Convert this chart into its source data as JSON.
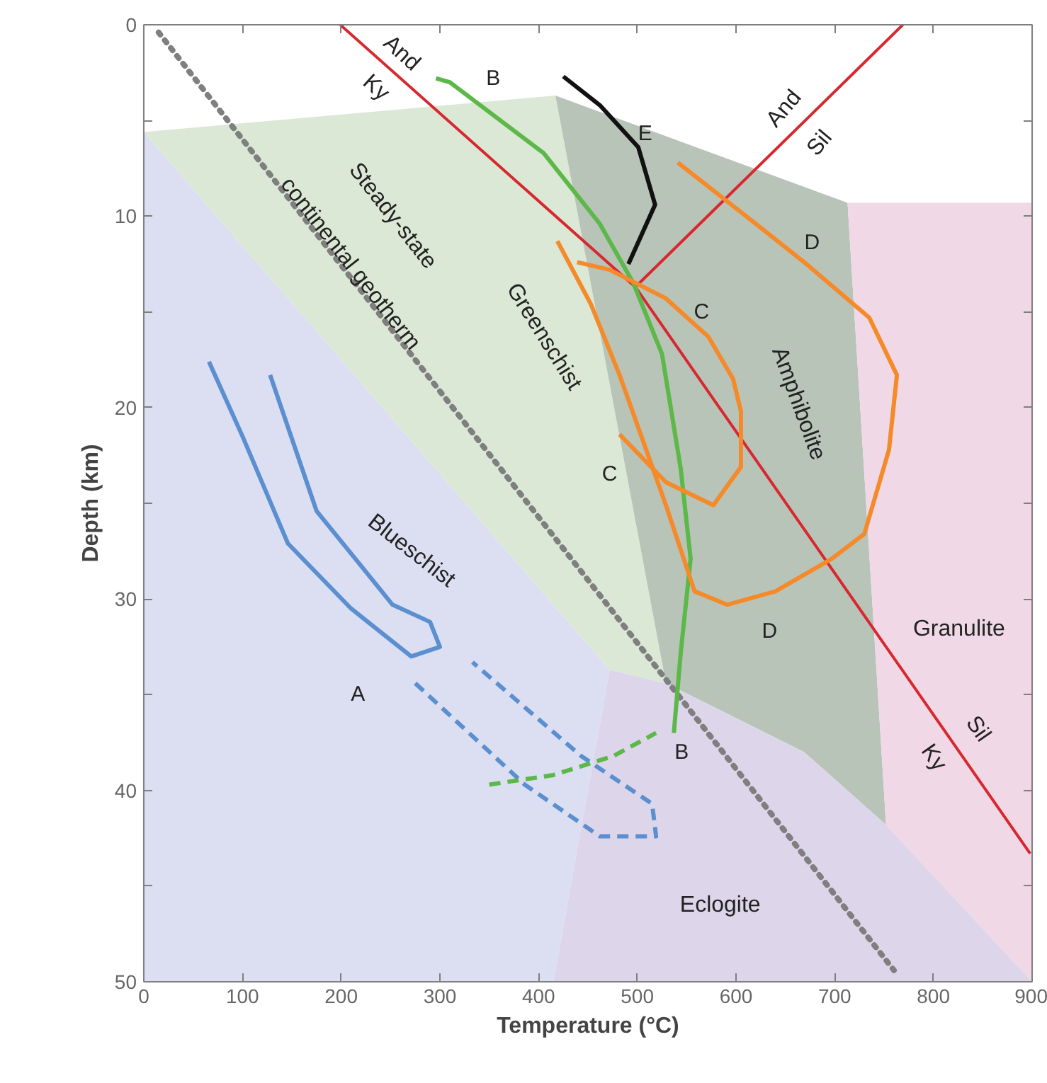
{
  "chart_data": {
    "type": "line",
    "xlabel": "Temperature (°C)",
    "ylabel": "Depth (km)",
    "xlim": [
      0,
      900
    ],
    "ylim": [
      50,
      0
    ],
    "xticks": [
      0,
      100,
      200,
      300,
      400,
      500,
      600,
      700,
      800,
      900
    ],
    "yticks": [
      0,
      {
        "value": 5,
        "label": null
      },
      10,
      {
        "value": 15,
        "label": null
      },
      20,
      {
        "value": 25,
        "label": null
      },
      30,
      {
        "value": 35,
        "label": null
      },
      40,
      {
        "value": 45,
        "label": null
      },
      50
    ],
    "grid": false,
    "marker": "none",
    "series": [
      {
        "type": "area",
        "color": "#dcdff2",
        "x": [
          0,
          472,
          415,
          0
        ],
        "values": [
          5.6,
          33.7,
          50,
          50
        ]
      },
      {
        "type": "area",
        "color": "#dbe8d5",
        "x": [
          0,
          417,
          529,
          472
        ],
        "values": [
          5.6,
          3.7,
          34.4,
          33.7
        ]
      },
      {
        "type": "area",
        "color": "#b9c4b9",
        "x": [
          417,
          713,
          752,
          669,
          529
        ],
        "values": [
          3.7,
          9.3,
          41.8,
          38,
          34.4
        ]
      },
      {
        "type": "area",
        "color": "#f0d8e6",
        "x": [
          713,
          900,
          900,
          752
        ],
        "values": [
          9.3,
          9.3,
          50,
          41.8
        ]
      },
      {
        "type": "area",
        "color": "#ddd5ea",
        "x": [
          472,
          529,
          669,
          752,
          900,
          415
        ],
        "values": [
          33.7,
          34.4,
          38,
          41.8,
          50,
          50
        ]
      },
      {
        "line_style": "dotted",
        "color": "#7f7f7f",
        "x": [
          15,
          760
        ],
        "values": [
          0.4,
          49.4
        ]
      },
      {
        "color": "#d7282f",
        "x": [
          199,
          498,
          898
        ],
        "values": [
          0,
          13.7,
          43.3
        ]
      },
      {
        "color": "#d7282f",
        "x": [
          498,
          769
        ],
        "values": [
          13.7,
          0
        ]
      },
      {
        "color": "#5b8fcf",
        "x": [
          66,
          100,
          146,
          210,
          271,
          300,
          290,
          252,
          175,
          128
        ],
        "values": [
          17.6,
          21.5,
          27.1,
          30.5,
          33,
          32.5,
          31.2,
          30.3,
          25.4,
          18.3
        ]
      },
      {
        "line_style": "dashed",
        "color": "#5b8fcf",
        "x": [
          275,
          386,
          462,
          519,
          515,
          443,
          333
        ],
        "values": [
          34.4,
          39.7,
          42.4,
          42.4,
          40.7,
          38.2,
          33.3
        ]
      },
      {
        "line_style": "dashed",
        "color": "#5cb848",
        "x": [
          350,
          415,
          476,
          519
        ],
        "values": [
          39.7,
          39.2,
          38.2,
          37
        ]
      },
      {
        "color": "#5cb848",
        "x": [
          537,
          544,
          554,
          544,
          525,
          496,
          462,
          405,
          310,
          296
        ],
        "values": [
          37,
          32.8,
          27.9,
          23.2,
          17.2,
          13.5,
          10.4,
          6.7,
          3,
          2.8
        ]
      },
      {
        "color": "#111111",
        "x": [
          491,
          518,
          501,
          462,
          425
        ],
        "values": [
          12.5,
          9.4,
          6.4,
          4.2,
          2.7
        ]
      },
      {
        "color": "#f58a2a",
        "x": [
          541,
          620,
          669,
          735,
          763,
          755,
          730,
          697,
          640,
          591,
          558,
          529,
          482,
          453,
          419
        ],
        "values": [
          7.2,
          10.4,
          12.4,
          15.3,
          18.3,
          22.2,
          26.6,
          27.9,
          29.6,
          30.3,
          29.6,
          25.1,
          18.3,
          14.6,
          11.3
        ]
      },
      {
        "color": "#f58a2a",
        "x": [
          482,
          529,
          577,
          605,
          605,
          597,
          572,
          529,
          472,
          439
        ],
        "values": [
          21.4,
          23.9,
          25.1,
          23.1,
          20.2,
          18.5,
          16.3,
          14.3,
          12.8,
          12.4
        ]
      }
    ],
    "annotations": [
      "A",
      "B",
      "B",
      "C",
      "C",
      "D",
      "D",
      "E",
      "Steady-state",
      "continental geotherm",
      "Greenschist",
      "Blueschist",
      "Amphibolite",
      "Granulite",
      "Eclogite",
      "And",
      "Ky",
      "And",
      "Sil",
      "Sil",
      "Ky"
    ]
  }
}
